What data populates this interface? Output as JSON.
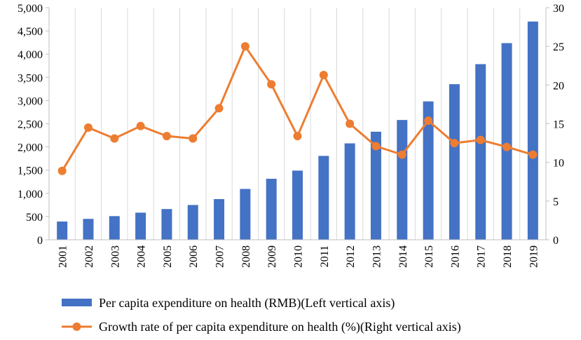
{
  "chart_data": {
    "type": "bar+line",
    "title": "",
    "categories": [
      "2001",
      "2002",
      "2003",
      "2004",
      "2005",
      "2006",
      "2007",
      "2008",
      "2009",
      "2010",
      "2011",
      "2012",
      "2013",
      "2014",
      "2015",
      "2016",
      "2017",
      "2018",
      "2019"
    ],
    "series": [
      {
        "name": "Per capita expenditure on health (RMB)(Left vertical axis)",
        "type": "bar",
        "axis": "left",
        "color": "#4472C4",
        "values": [
          393,
          450,
          509,
          584,
          662,
          749,
          876,
          1095,
          1314,
          1490,
          1807,
          2077,
          2328,
          2581,
          2981,
          3352,
          3784,
          4237,
          4702
        ]
      },
      {
        "name": "Growth rate of per capita expenditure on health (%)(Right vertical axis)",
        "type": "line",
        "axis": "right",
        "color": "#ED7D31",
        "values": [
          8.9,
          14.5,
          13.1,
          14.7,
          13.4,
          13.1,
          17.0,
          25.0,
          20.1,
          13.4,
          21.3,
          15.0,
          12.1,
          11.0,
          15.4,
          12.5,
          12.9,
          12.0,
          11.0
        ]
      }
    ],
    "y_left": {
      "ylim": [
        0,
        5000
      ],
      "ticks": [
        0,
        500,
        1000,
        1500,
        2000,
        2500,
        3000,
        3500,
        4000,
        4500,
        5000
      ],
      "tick_labels": [
        "0",
        "500",
        "1,000",
        "1,500",
        "2,000",
        "2,500",
        "3,000",
        "3,500",
        "4,000",
        "4,500",
        "5,000"
      ]
    },
    "y_right": {
      "ylim": [
        0,
        30
      ],
      "ticks": [
        0,
        5,
        10,
        15,
        20,
        25,
        30
      ],
      "tick_labels": [
        "0",
        "5",
        "10",
        "15",
        "20",
        "25",
        "30"
      ]
    },
    "grid": "vertical",
    "legend_position": "bottom"
  }
}
